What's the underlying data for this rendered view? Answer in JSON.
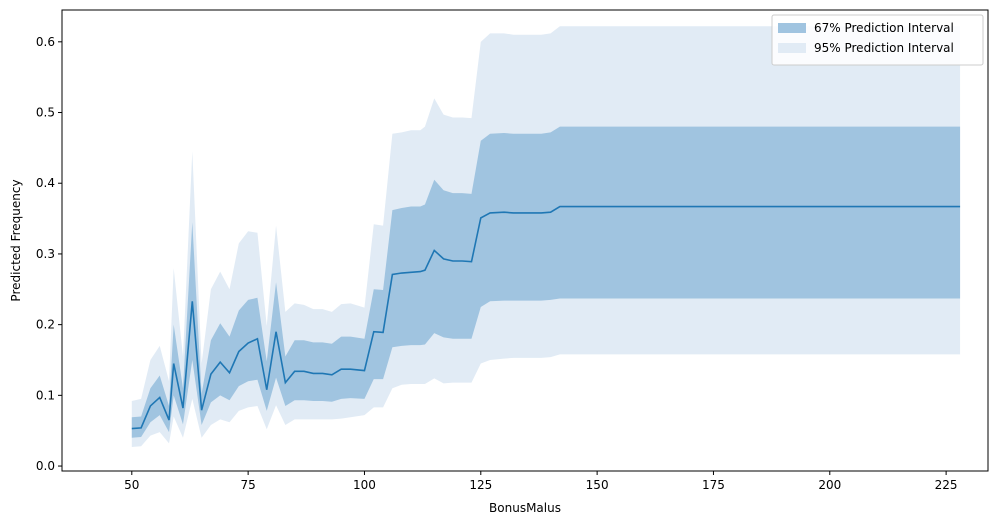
{
  "chart_data": {
    "type": "area",
    "title": "",
    "xlabel": "BonusMalus",
    "ylabel": "Predicted Frequency",
    "xlim": [
      35,
      234
    ],
    "ylim": [
      -0.007,
      0.645
    ],
    "xticks": [
      50,
      75,
      100,
      125,
      150,
      175,
      200,
      225
    ],
    "yticks": [
      0.0,
      0.1,
      0.2,
      0.3,
      0.4,
      0.5,
      0.6
    ],
    "ytick_labels": [
      "0.0",
      "0.1",
      "0.2",
      "0.3",
      "0.4",
      "0.5",
      "0.6"
    ],
    "grid": false,
    "legend_position": "top-right",
    "legend": [
      {
        "label": "67% Prediction Interval",
        "color": "#a0c4e0"
      },
      {
        "label": "95% Prediction Interval",
        "color": "#e1ebf5"
      }
    ],
    "colors": {
      "line": "#1f77b4",
      "band67": "#a0c4e0",
      "band95": "#e1ebf5"
    },
    "x": [
      50,
      52,
      54,
      56,
      58,
      59,
      61,
      63,
      65,
      67,
      69,
      71,
      73,
      75,
      77,
      79,
      81,
      83,
      85,
      87,
      89,
      91,
      93,
      95,
      97,
      100,
      102,
      104,
      106,
      108,
      110,
      112,
      113,
      115,
      117,
      119,
      121,
      123,
      125,
      127,
      130,
      132,
      134,
      136,
      138,
      140,
      142,
      228
    ],
    "series": [
      {
        "role": "prediction",
        "values": [
          0.053,
          0.054,
          0.085,
          0.097,
          0.065,
          0.145,
          0.082,
          0.233,
          0.079,
          0.13,
          0.147,
          0.132,
          0.162,
          0.174,
          0.18,
          0.108,
          0.19,
          0.118,
          0.134,
          0.134,
          0.131,
          0.131,
          0.129,
          0.137,
          0.137,
          0.135,
          0.19,
          0.189,
          0.271,
          0.273,
          0.274,
          0.275,
          0.277,
          0.305,
          0.293,
          0.29,
          0.29,
          0.289,
          0.351,
          0.358,
          0.359,
          0.358,
          0.358,
          0.358,
          0.358,
          0.359,
          0.367,
          0.367
        ]
      },
      {
        "role": "interval_67",
        "low": [
          0.04,
          0.041,
          0.062,
          0.072,
          0.048,
          0.1,
          0.059,
          0.15,
          0.058,
          0.09,
          0.1,
          0.093,
          0.113,
          0.12,
          0.122,
          0.078,
          0.125,
          0.085,
          0.093,
          0.093,
          0.092,
          0.092,
          0.091,
          0.095,
          0.096,
          0.095,
          0.123,
          0.123,
          0.168,
          0.17,
          0.171,
          0.171,
          0.172,
          0.188,
          0.182,
          0.18,
          0.18,
          0.18,
          0.225,
          0.233,
          0.234,
          0.234,
          0.234,
          0.234,
          0.234,
          0.235,
          0.237,
          0.237
        ],
        "high": [
          0.069,
          0.07,
          0.11,
          0.128,
          0.085,
          0.2,
          0.11,
          0.345,
          0.102,
          0.178,
          0.202,
          0.183,
          0.22,
          0.235,
          0.238,
          0.148,
          0.26,
          0.155,
          0.178,
          0.178,
          0.175,
          0.175,
          0.173,
          0.183,
          0.183,
          0.18,
          0.25,
          0.249,
          0.362,
          0.365,
          0.367,
          0.367,
          0.37,
          0.405,
          0.39,
          0.386,
          0.386,
          0.385,
          0.46,
          0.47,
          0.471,
          0.47,
          0.47,
          0.47,
          0.47,
          0.472,
          0.48,
          0.48
        ]
      },
      {
        "role": "interval_95",
        "low": [
          0.027,
          0.028,
          0.043,
          0.048,
          0.032,
          0.07,
          0.04,
          0.095,
          0.04,
          0.058,
          0.066,
          0.062,
          0.078,
          0.083,
          0.085,
          0.052,
          0.086,
          0.058,
          0.066,
          0.066,
          0.066,
          0.066,
          0.066,
          0.067,
          0.069,
          0.072,
          0.083,
          0.083,
          0.11,
          0.115,
          0.116,
          0.116,
          0.116,
          0.124,
          0.117,
          0.118,
          0.118,
          0.118,
          0.145,
          0.15,
          0.152,
          0.153,
          0.153,
          0.153,
          0.153,
          0.154,
          0.158,
          0.158
        ],
        "high": [
          0.092,
          0.095,
          0.15,
          0.17,
          0.12,
          0.28,
          0.155,
          0.445,
          0.145,
          0.25,
          0.275,
          0.25,
          0.315,
          0.332,
          0.33,
          0.198,
          0.34,
          0.218,
          0.23,
          0.228,
          0.222,
          0.222,
          0.218,
          0.229,
          0.23,
          0.224,
          0.342,
          0.34,
          0.47,
          0.472,
          0.475,
          0.475,
          0.48,
          0.52,
          0.497,
          0.493,
          0.493,
          0.492,
          0.6,
          0.612,
          0.612,
          0.61,
          0.61,
          0.61,
          0.61,
          0.612,
          0.622,
          0.622
        ]
      }
    ]
  }
}
